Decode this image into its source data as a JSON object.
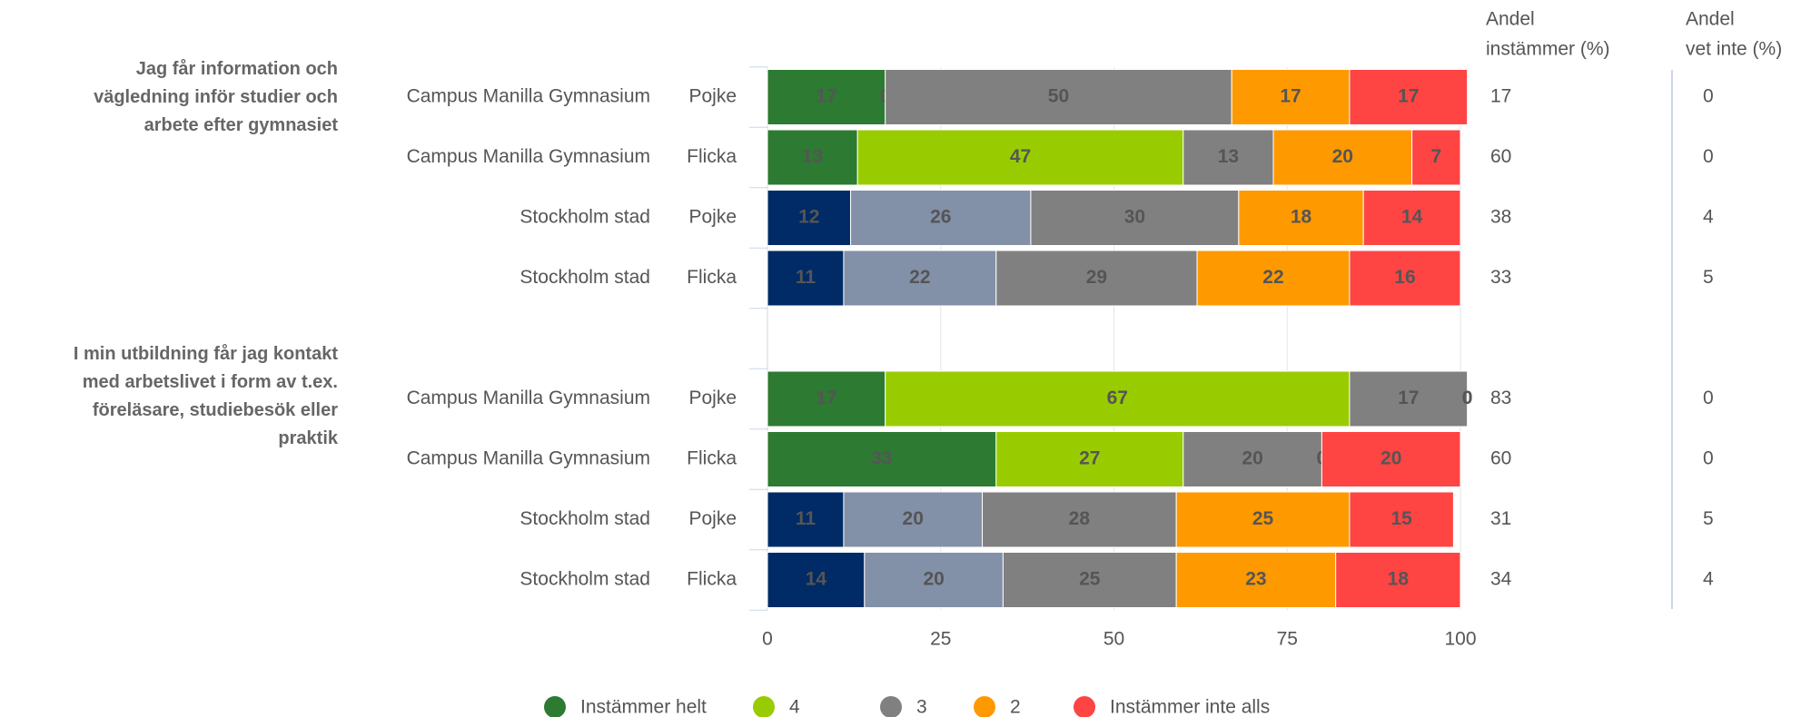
{
  "chart_data": {
    "type": "stacked-bar",
    "orientation": "horizontal",
    "question_labels": [
      [
        "Jag får information och",
        "vägledning inför studier och",
        "arbete efter gymnasiet"
      ],
      [
        "I min utbildning får jag kontakt",
        "med arbetslivet i form av t.ex.",
        "föreläsare, studiebesök eller",
        "praktik"
      ]
    ],
    "categories": [
      "Campus Manilla Gymnasium",
      "Campus Manilla Gymnasium",
      "Stockholm stad",
      "Stockholm stad",
      null,
      "Campus Manilla Gymnasium",
      "Campus Manilla Gymnasium",
      "Stockholm stad",
      "Stockholm stad"
    ],
    "sub_categories": [
      "Pojke",
      "Flicka",
      "Pojke",
      "Flicka",
      null,
      "Pojke",
      "Flicka",
      "Pojke",
      "Flicka"
    ],
    "series": [
      {
        "name": "Instämmer helt",
        "color": "#2d7a32",
        "colors": [
          "#2d7a32",
          "#2d7a32",
          "#002b66",
          "#002b66",
          null,
          "#2d7a32",
          "#2d7a32",
          "#002b66",
          "#002b66"
        ],
        "values": [
          17,
          13,
          12,
          11,
          null,
          17,
          33,
          11,
          14
        ]
      },
      {
        "name": "4",
        "color": "#99cc00",
        "colors": [
          "#99cc00",
          "#99cc00",
          "#8290a8",
          "#8290a8",
          null,
          "#99cc00",
          "#99cc00",
          "#8290a8",
          "#8290a8"
        ],
        "values": [
          0,
          47,
          26,
          22,
          null,
          67,
          27,
          20,
          20
        ]
      },
      {
        "name": "3",
        "color": "#808080",
        "colors": [
          "#808080",
          "#808080",
          "#808080",
          "#808080",
          null,
          "#808080",
          "#808080",
          "#808080",
          "#808080"
        ],
        "values": [
          50,
          13,
          30,
          29,
          null,
          17,
          20,
          28,
          25
        ]
      },
      {
        "name": "2",
        "color": "#ff9900",
        "colors": [
          "#ff9900",
          "#ff9900",
          "#ff9900",
          "#ff9900",
          null,
          "#ff9900",
          "#ff9900",
          "#ff9900",
          "#ff9900"
        ],
        "values": [
          17,
          20,
          18,
          22,
          null,
          0,
          0,
          25,
          23
        ]
      },
      {
        "name": "Instämmer inte alls",
        "color": "#ff4444",
        "colors": [
          "#ff4444",
          "#ff4444",
          "#ff4444",
          "#ff4444",
          null,
          "#ff4444",
          "#ff4444",
          "#ff4444",
          "#ff4444"
        ],
        "values": [
          17,
          7,
          14,
          16,
          null,
          0,
          20,
          15,
          18
        ]
      }
    ],
    "columns": [
      {
        "header": [
          "Andel",
          "instämmer (%)"
        ],
        "values": [
          17,
          60,
          38,
          33,
          null,
          83,
          60,
          31,
          34
        ]
      },
      {
        "header": [
          "Andel",
          "vet inte (%)"
        ],
        "values": [
          0,
          0,
          4,
          5,
          null,
          0,
          0,
          5,
          4
        ]
      }
    ],
    "xlim": [
      0,
      100
    ],
    "xticks": [
      0,
      25,
      50,
      75,
      100
    ],
    "grid": true
  }
}
